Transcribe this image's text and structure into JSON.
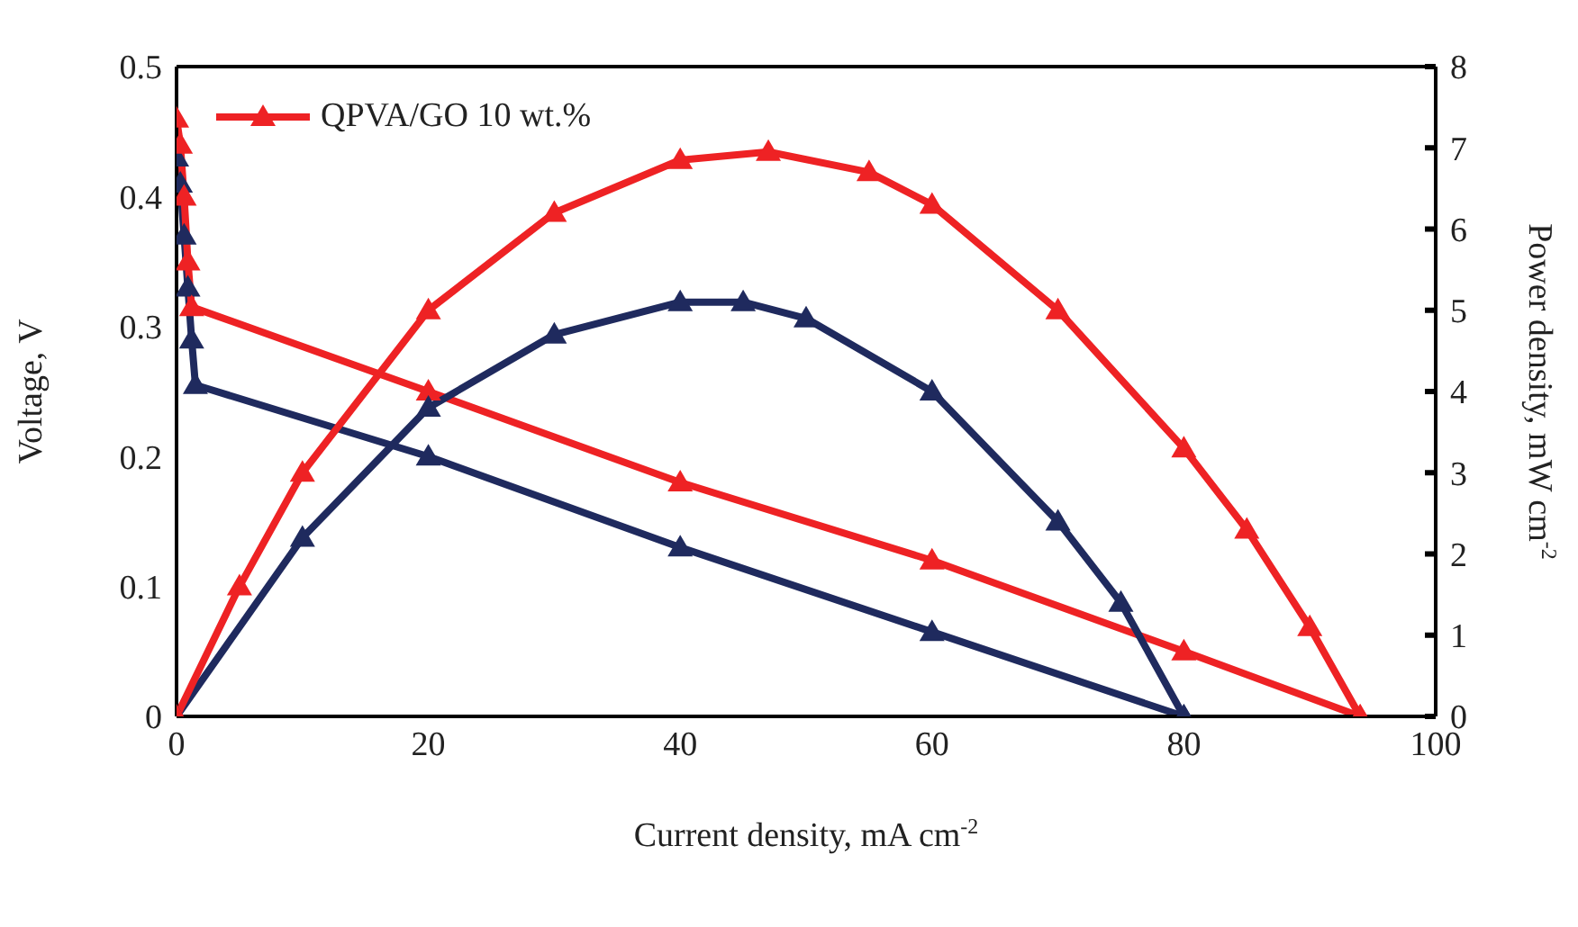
{
  "chart_data": {
    "type": "line",
    "xlabel": "Current density, mA cm$^{-2}$",
    "ylabel": "Voltage, V",
    "y2label": "Power density, mW cm$^{-2}$",
    "xlim": [
      0,
      100
    ],
    "xticks": [
      0,
      20,
      40,
      60,
      80,
      100
    ],
    "ylim": [
      0,
      0.5
    ],
    "yticks": [
      0,
      0.1,
      0.2,
      0.3,
      0.4,
      0.5
    ],
    "y2lim": [
      0,
      8
    ],
    "y2ticks": [
      0,
      1,
      2,
      3,
      4,
      5,
      6,
      7,
      8
    ],
    "grid": false,
    "legend": "top left",
    "marker": "triangle",
    "line_style": "solid",
    "series": [
      {
        "color": "#1f2a5e",
        "x": [
          0,
          0.3,
          0.6,
          0.9,
          1.2,
          1.5,
          20,
          40,
          60,
          80
        ],
        "values": [
          0.43,
          0.41,
          0.37,
          0.33,
          0.29,
          0.255,
          0.2,
          0.13,
          0.065,
          0
        ]
      },
      {
        "name": "QPVA/GO 10 wt.%",
        "color": "#ee2224",
        "x": [
          0,
          0.3,
          0.6,
          0.9,
          1.2,
          20,
          40,
          60,
          80,
          94
        ],
        "values": [
          0.46,
          0.44,
          0.4,
          0.35,
          0.315,
          0.25,
          0.18,
          0.12,
          0.05,
          0
        ]
      },
      {
        "color": "#1f2a5e",
        "axis": "y2",
        "x": [
          0,
          10,
          20,
          30,
          40,
          45,
          50,
          60,
          70,
          75,
          80
        ],
        "values": [
          0,
          2.2,
          3.8,
          4.7,
          5.1,
          5.1,
          4.9,
          4,
          2.4,
          1.4,
          0
        ]
      },
      {
        "color": "#ee2224",
        "axis": "y2",
        "x": [
          0,
          5,
          10,
          20,
          30,
          40,
          47,
          55,
          60,
          70,
          80,
          85,
          90,
          94
        ],
        "values": [
          0,
          1.6,
          3,
          5,
          6.2,
          6.85,
          6.95,
          6.7,
          6.3,
          5,
          3.3,
          2.3,
          1.1,
          0
        ]
      }
    ]
  }
}
